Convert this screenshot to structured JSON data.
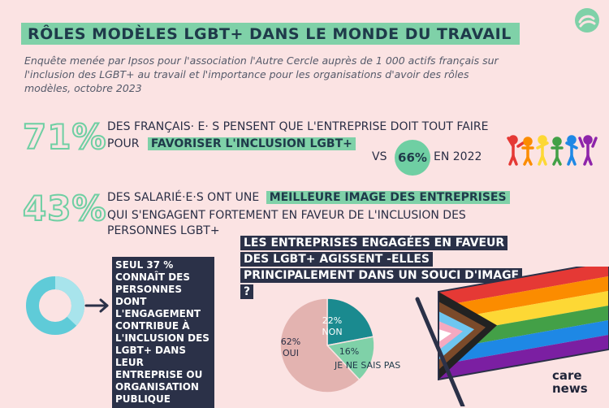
{
  "title": "RÔLES MODÈLES LGBT+ DANS LE MONDE DU TRAVAIL",
  "intro": "Enquête menée par Ipsos pour l'association l'Autre Cercle auprès de 1 000 actifs français sur l'inclusion des LGBT+ au travail et l'importance pour les organisations d'avoir des rôles modèles, octobre 2023",
  "stat1": {
    "percent": "71%",
    "line1": "DES FRANÇAIS· E· S PENSENT QUE L'ENTREPRISE DOIT TOUT FAIRE",
    "line2_prefix": "POUR",
    "highlight": "FAVORISER L'INCLUSION LGBT+",
    "vs": "VS",
    "compare_percent": "66%",
    "compare_year": "EN 2022"
  },
  "stat2": {
    "percent": "43%",
    "line1_prefix": "DES SALARIÉ·E·S ONT UNE",
    "highlight": "MEILLEURE IMAGE DES ENTREPRISES",
    "line2": "QUI S'ENGAGENT FORTEMENT EN FAVEUR DE L'INCLUSION DES",
    "line3": "PERSONNES LGBT+"
  },
  "stat3": {
    "donut_fraction": 0.37,
    "text": "SEUL 37 % CONNAÎT DES PERSONNES DONT L'ENGAGEMENT CONTRIBUE À L'INCLUSION DES LGBT+ DANS LEUR ENTREPRISE OU ORGANISATION PUBLIQUE"
  },
  "question": "LES ENTREPRISES ENGAGÉES EN FAVEUR DES LGBT+ AGISSENT -ELLES PRINCIPALEMENT DANS UN SOUCI D'IMAGE ?",
  "chart_data": {
    "type": "pie",
    "slices": [
      {
        "label": "NON",
        "pct_text": "22%",
        "value": 22,
        "color": "#1a8a8f"
      },
      {
        "label": "JE NE SAIS PAS",
        "pct_text": "16%",
        "value": 16,
        "color": "#7fd1a8"
      },
      {
        "label": "OUI",
        "pct_text": "62%",
        "value": 62,
        "color": "#e3b3b0"
      }
    ]
  },
  "brand": {
    "line1": "care",
    "line2": "news"
  },
  "colors": {
    "accent": "#7fd1a8",
    "dark": "#2b3148",
    "background": "#fbe3e3",
    "donut": "#5fcbd8"
  }
}
